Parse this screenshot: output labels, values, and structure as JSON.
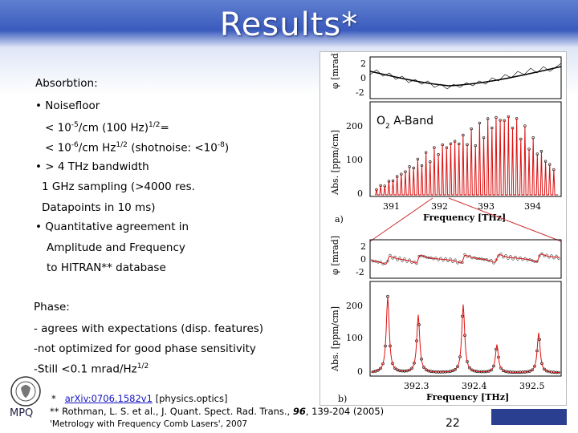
{
  "title": "Results*",
  "bullets": {
    "absorption": "Absorbtion:",
    "noisefloor": "• Noisefloor",
    "nf1_a": "< 10",
    "nf1_sup1": "-5",
    "nf1_b": "/cm (100 Hz)",
    "nf1_sup2": "1/2",
    "nf1_c": "=",
    "nf2_a": "< 10",
    "nf2_sup1": "-6",
    "nf2_b": "/cm Hz",
    "nf2_sup2": "1/2",
    "nf2_c": " (shotnoise: <10",
    "nf2_sup3": "-8",
    "nf2_d": ")",
    "bandwidth": "• > 4 THz bandwidth",
    "sampling": "1 GHz sampling (>4000 res.",
    "datapoints": "Datapoints in 10 ms)",
    "quant": "• Quantitative agreement in",
    "amp": "Amplitude and Frequency",
    "hitran": "to HITRAN** database",
    "phase": "Phase:",
    "phase1": "- agrees with expectations (disp. features)",
    "phase2": "-not optimized for good phase sensitivity",
    "phase3_a": "-Still <0.1 mrad/Hz",
    "phase3_sup": "1/2"
  },
  "figure": {
    "band_label": "O",
    "band_sub": "2",
    "band_rest": " A-Band",
    "top": {
      "phi_label": "φ [mrad]",
      "abs_label": "Abs. [ppm/cm]",
      "phi_ticks": [
        "2",
        "0",
        "-2"
      ],
      "abs_ticks": [
        "200",
        "100",
        "0"
      ],
      "x_ticks": [
        "391",
        "392",
        "393",
        "394"
      ],
      "xlabel": "Frequency [THz]",
      "panel": "a)"
    },
    "bottom": {
      "phi_label": "φ [mrad]",
      "abs_label": "Abs. [ppm/cm]",
      "phi_ticks": [
        "2",
        "0",
        "-2"
      ],
      "abs_ticks": [
        "200",
        "100",
        "0"
      ],
      "x_ticks": [
        "392.3",
        "392.4",
        "392.5"
      ],
      "xlabel": "Frequency [THz]",
      "panel": "b)"
    }
  },
  "footnotes": {
    "star": "*",
    "arxiv": "arXiv:0706.1582v1",
    "arxiv_rest": " [physics.optics]",
    "rothman_a": "** Rothman, L. S. et al., J. Quant. Spect. Rad. Trans., ",
    "rothman_vol": "96",
    "rothman_b": ", 139-204 (2005)",
    "metrology": "'Metrology with Frequency Comb Lasers', 2007"
  },
  "page_number": "22",
  "logo_text": "MPQ"
}
